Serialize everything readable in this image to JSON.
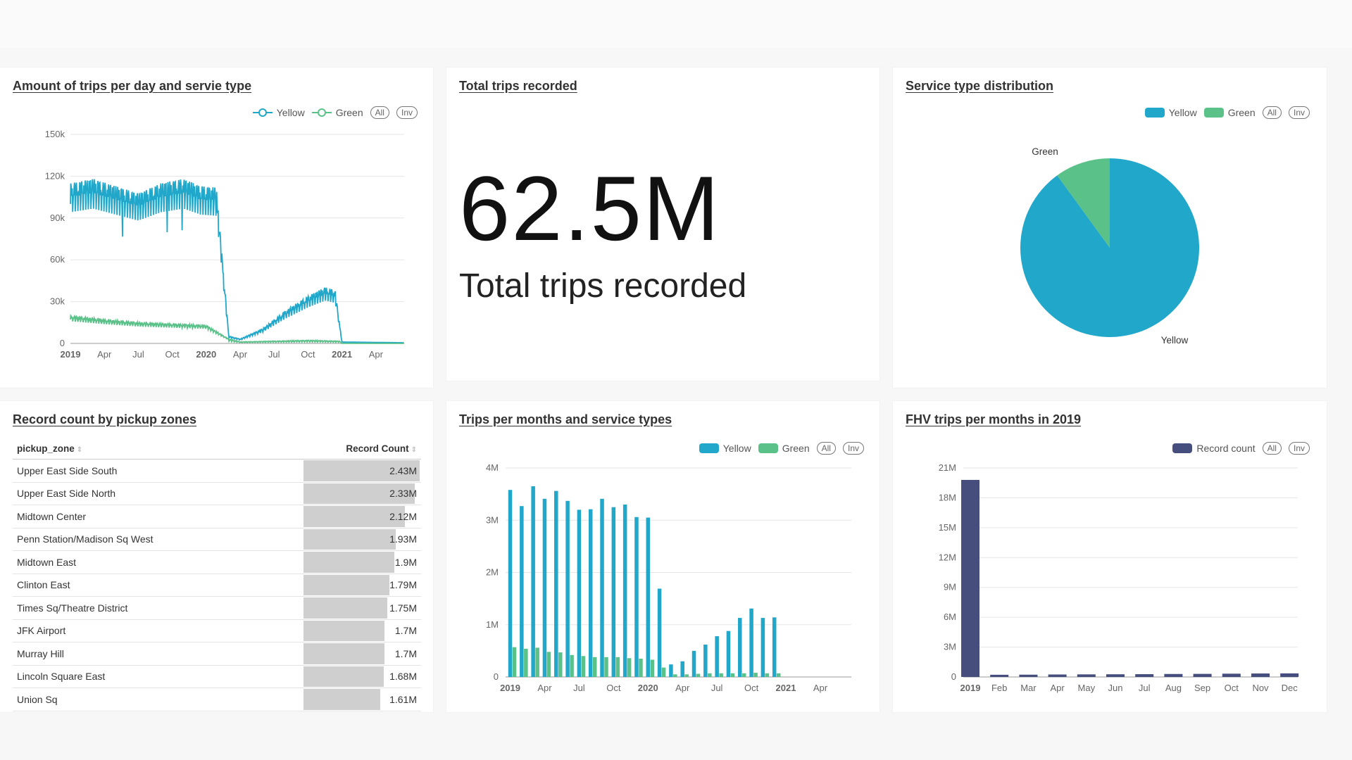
{
  "colors": {
    "yellow": "#20a7c9",
    "green": "#5ac189",
    "record": "#454e7c",
    "bar_bg": "#cfcfcf"
  },
  "legend_controls": {
    "all": "All",
    "inv": "Inv"
  },
  "panels": {
    "trips_per_day": {
      "title": "Amount of trips per day and servie type"
    },
    "total_trips": {
      "title": "Total trips recorded",
      "value": "62.5M",
      "label": "Total trips recorded"
    },
    "service_dist": {
      "title": "Service type distribution"
    },
    "pickup_zones": {
      "title": "Record count by pickup zones"
    },
    "trips_per_month": {
      "title": "Trips per months and service types"
    },
    "fhv": {
      "title": "FHV trips per months in 2019"
    }
  },
  "chart_data": [
    {
      "type": "line",
      "name": "trips_per_day",
      "legend": [
        "Yellow",
        "Green"
      ],
      "y_ticks": [
        "0",
        "30k",
        "60k",
        "90k",
        "120k",
        "150k"
      ],
      "ylim": [
        0,
        150000
      ],
      "x_ticks": [
        {
          "label": "2019",
          "t": 0,
          "bold": true
        },
        {
          "label": "Apr",
          "t": 3
        },
        {
          "label": "Jul",
          "t": 6
        },
        {
          "label": "Oct",
          "t": 9
        },
        {
          "label": "2020",
          "t": 12,
          "bold": true
        },
        {
          "label": "Apr",
          "t": 15
        },
        {
          "label": "Jul",
          "t": 18
        },
        {
          "label": "Oct",
          "t": 21
        },
        {
          "label": "2021",
          "t": 24,
          "bold": true
        },
        {
          "label": "Apr",
          "t": 27
        }
      ],
      "xlim": [
        0,
        29.5
      ],
      "series": [
        {
          "name": "Yellow",
          "anchors": [
            [
              0,
              110000
            ],
            [
              2,
              113000
            ],
            [
              4,
              108000
            ],
            [
              6,
              103000
            ],
            [
              8,
              110000
            ],
            [
              10,
              113000
            ],
            [
              11.5,
              108000
            ],
            [
              12.9,
              107000
            ],
            [
              14,
              5000
            ],
            [
              15,
              3000
            ],
            [
              17,
              10000
            ],
            [
              19,
              22000
            ],
            [
              21,
              32000
            ],
            [
              22.5,
              38000
            ],
            [
              23.4,
              36000
            ],
            [
              24,
              1000
            ],
            [
              29.5,
              500
            ]
          ]
        },
        {
          "name": "Green",
          "anchors": [
            [
              0,
              19000
            ],
            [
              3,
              16500
            ],
            [
              6,
              14500
            ],
            [
              9,
              13500
            ],
            [
              12,
              12500
            ],
            [
              14,
              3000
            ],
            [
              15,
              1000
            ],
            [
              18,
              1500
            ],
            [
              21,
              2000
            ],
            [
              23.8,
              1500
            ],
            [
              24,
              0
            ],
            [
              29.5,
              0
            ]
          ]
        }
      ]
    },
    {
      "type": "pie",
      "name": "service_dist",
      "legend": [
        "Yellow",
        "Green"
      ],
      "slices": [
        {
          "label": "Yellow",
          "value": 90
        },
        {
          "label": "Green",
          "value": 10
        }
      ]
    },
    {
      "type": "table",
      "name": "pickup_zones",
      "columns": [
        "pickup_zone",
        "Record Count"
      ],
      "max": 2.43,
      "rows": [
        {
          "zone": "Upper East Side South",
          "count": "2.43M",
          "value": 2.43
        },
        {
          "zone": "Upper East Side North",
          "count": "2.33M",
          "value": 2.33
        },
        {
          "zone": "Midtown Center",
          "count": "2.12M",
          "value": 2.12
        },
        {
          "zone": "Penn Station/Madison Sq West",
          "count": "1.93M",
          "value": 1.93
        },
        {
          "zone": "Midtown East",
          "count": "1.9M",
          "value": 1.9
        },
        {
          "zone": "Clinton East",
          "count": "1.79M",
          "value": 1.79
        },
        {
          "zone": "Times Sq/Theatre District",
          "count": "1.75M",
          "value": 1.75
        },
        {
          "zone": "JFK Airport",
          "count": "1.7M",
          "value": 1.7
        },
        {
          "zone": "Murray Hill",
          "count": "1.7M",
          "value": 1.7
        },
        {
          "zone": "Lincoln Square East",
          "count": "1.68M",
          "value": 1.68
        },
        {
          "zone": "Union Sq",
          "count": "1.61M",
          "value": 1.61
        }
      ]
    },
    {
      "type": "bar",
      "name": "trips_per_month",
      "legend": [
        "Yellow",
        "Green"
      ],
      "y_ticks": [
        "0",
        "1M",
        "2M",
        "3M",
        "4M"
      ],
      "ylim": [
        0,
        4000000
      ],
      "x_ticks": [
        {
          "label": "2019",
          "t": 0,
          "bold": true
        },
        {
          "label": "Apr",
          "t": 3
        },
        {
          "label": "Jul",
          "t": 6
        },
        {
          "label": "Oct",
          "t": 9
        },
        {
          "label": "2020",
          "t": 12,
          "bold": true
        },
        {
          "label": "Apr",
          "t": 15
        },
        {
          "label": "Jul",
          "t": 18
        },
        {
          "label": "Oct",
          "t": 21
        },
        {
          "label": "2021",
          "t": 24,
          "bold": true
        },
        {
          "label": "Apr",
          "t": 27
        }
      ],
      "xlim": [
        -0.4,
        29.7
      ],
      "series": [
        {
          "name": "Yellow",
          "values": [
            3580000,
            3270000,
            3650000,
            3410000,
            3560000,
            3370000,
            3200000,
            3210000,
            3410000,
            3250000,
            3300000,
            3060000,
            3050000,
            1690000,
            240000,
            300000,
            500000,
            620000,
            780000,
            880000,
            1130000,
            1310000,
            1130000,
            1140000
          ]
        },
        {
          "name": "Green",
          "values": [
            570000,
            540000,
            560000,
            480000,
            470000,
            420000,
            400000,
            380000,
            380000,
            380000,
            360000,
            350000,
            330000,
            180000,
            50000,
            50000,
            60000,
            70000,
            70000,
            70000,
            70000,
            80000,
            70000,
            70000
          ]
        }
      ]
    },
    {
      "type": "bar",
      "name": "fhv",
      "legend": [
        "Record count"
      ],
      "categories": [
        "2019",
        "Feb",
        "Mar",
        "Apr",
        "May",
        "Jun",
        "Jul",
        "Aug",
        "Sep",
        "Oct",
        "Nov",
        "Dec"
      ],
      "y_ticks": [
        "0",
        "3M",
        "6M",
        "9M",
        "12M",
        "15M",
        "18M",
        "21M"
      ],
      "ylim": [
        0,
        21000000
      ],
      "values": [
        19800000,
        220000,
        230000,
        250000,
        260000,
        270000,
        280000,
        300000,
        310000,
        330000,
        350000,
        360000
      ]
    }
  ]
}
